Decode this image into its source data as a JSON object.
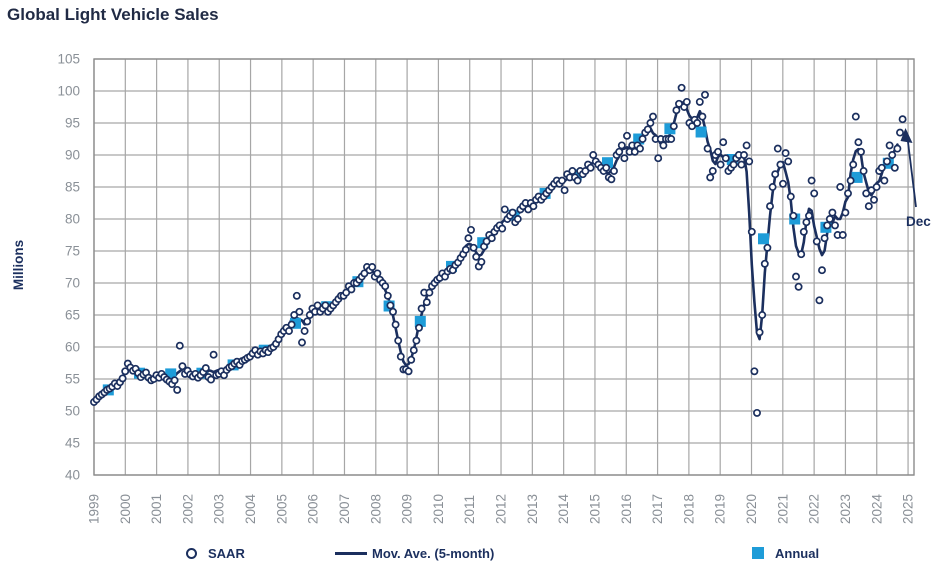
{
  "title": "Global Light Vehicle Sales",
  "y_axis": {
    "label": "Millions",
    "min": 40,
    "max": 105,
    "step": 5,
    "ticks": [
      105,
      100,
      95,
      90,
      85,
      80,
      75,
      70,
      65,
      60,
      55,
      50,
      45,
      40
    ]
  },
  "x_axis": {
    "ticks": [
      "1999",
      "2000",
      "2001",
      "2002",
      "2003",
      "2004",
      "2005",
      "2006",
      "2007",
      "2008",
      "2009",
      "2010",
      "2011",
      "2012",
      "2013",
      "2014",
      "2015",
      "2016",
      "2017",
      "2018",
      "2019",
      "2020",
      "2021",
      "2022",
      "2023",
      "2024",
      "2025"
    ]
  },
  "annotation": {
    "label": "Dec"
  },
  "legend": {
    "items": [
      {
        "label": "SAAR",
        "marker": "circle"
      },
      {
        "label": "Mov. Ave. (5-month)",
        "marker": "line"
      },
      {
        "label": "Annual",
        "marker": "square"
      }
    ]
  },
  "colors": {
    "navy": "#1B2F5E",
    "blue": "#1E9CD8",
    "grid": "#A6A6A6",
    "frame": "#8C8C8C",
    "axis_text": "#8A9097"
  },
  "chart_data": {
    "type": "combo",
    "title": "Global Light Vehicle Sales",
    "ylabel": "Millions",
    "ylim": [
      40,
      105
    ],
    "xlim": [
      "1999",
      "2025"
    ],
    "grid": true,
    "legend_position": "bottom",
    "series": [
      {
        "name": "SAAR",
        "type": "scatter",
        "freq": "monthly",
        "start": "1999-01",
        "end": "2024-12",
        "values": [
          51.4,
          51.8,
          52.3,
          52.6,
          52.9,
          53.3,
          53.5,
          53.8,
          54.3,
          53.9,
          54.5,
          55.1,
          56.2,
          57.4,
          56.8,
          56.3,
          56.6,
          55.9,
          55.3,
          55.7,
          56.0,
          55.2,
          54.8,
          55.0,
          55.6,
          55.2,
          55.8,
          55.3,
          54.9,
          54.6,
          54.2,
          54.8,
          53.3,
          60.2,
          57.0,
          55.8,
          56.3,
          55.7,
          55.4,
          55.8,
          55.2,
          55.6,
          56.1,
          56.7,
          55.3,
          54.9,
          58.8,
          55.6,
          55.8,
          56.2,
          55.6,
          56.4,
          56.8,
          57.0,
          57.4,
          57.7,
          57.2,
          57.8,
          58.0,
          58.3,
          58.5,
          59.0,
          59.5,
          58.8,
          59.3,
          59.0,
          59.5,
          59.2,
          59.8,
          60.0,
          60.5,
          61.2,
          62.0,
          62.5,
          63.0,
          62.5,
          63.5,
          65.0,
          68.0,
          65.5,
          60.7,
          62.5,
          64.0,
          65.0,
          66.0,
          65.5,
          66.5,
          65.5,
          66.0,
          66.5,
          65.5,
          66.0,
          66.5,
          67.0,
          67.5,
          68.0,
          68.0,
          68.5,
          69.5,
          69.0,
          70.0,
          70.0,
          70.5,
          71.0,
          71.5,
          72.5,
          72.0,
          72.5,
          71.0,
          71.5,
          70.5,
          70.0,
          69.5,
          68.0,
          66.5,
          65.5,
          63.5,
          61.0,
          58.5,
          56.5,
          56.5,
          56.2,
          58.0,
          59.5,
          61.0,
          63.0,
          66.0,
          68.5,
          67.0,
          68.5,
          69.5,
          70.0,
          70.5,
          70.8,
          71.5,
          71.0,
          71.8,
          72.2,
          72.0,
          72.8,
          73.2,
          73.9,
          74.5,
          75.2,
          77.0,
          78.3,
          75.5,
          74.1,
          72.6,
          73.3,
          75.7,
          76.5,
          77.5,
          77.0,
          78.0,
          78.6,
          79.0,
          78.5,
          81.5,
          80.0,
          80.5,
          81.0,
          79.5,
          80.0,
          81.5,
          82.0,
          82.5,
          81.5,
          82.5,
          82.0,
          83.0,
          83.5,
          83.0,
          83.5,
          84.0,
          84.5,
          85.0,
          85.5,
          86.0,
          85.5,
          86.0,
          84.5,
          87.0,
          86.5,
          87.5,
          86.5,
          86.0,
          87.5,
          87.0,
          87.5,
          88.5,
          88.0,
          90.0,
          89.0,
          88.5,
          88.0,
          87.5,
          88.0,
          86.5,
          86.2,
          87.5,
          90.0,
          90.5,
          91.5,
          89.5,
          93.0,
          90.5,
          91.5,
          90.5,
          91.5,
          91.0,
          92.5,
          93.5,
          94.0,
          95.0,
          96.0,
          92.5,
          89.5,
          92.5,
          91.5,
          92.5,
          92.5,
          92.5,
          94.5,
          97.0,
          98.0,
          100.5,
          97.5,
          98.3,
          95.0,
          94.5,
          95.5,
          95.0,
          98.3,
          96.0,
          99.4,
          91.0,
          86.5,
          87.5,
          90.0,
          90.5,
          88.5,
          92.0,
          89.5,
          87.5,
          88.0,
          88.5,
          89.5,
          90.0,
          88.5,
          90.0,
          91.5,
          89.0,
          78.0,
          56.2,
          49.7,
          62.3,
          65.0,
          73.0,
          75.5,
          82.0,
          85.0,
          87.0,
          91.0,
          88.5,
          85.5,
          90.3,
          89.0,
          83.5,
          80.5,
          71.0,
          69.4,
          74.5,
          78.0,
          79.5,
          80.5,
          86.0,
          84.0,
          76.5,
          67.3,
          72.0,
          77.0,
          79.0,
          80.0,
          81.0,
          79.0,
          77.5,
          85.0,
          77.5,
          81.0,
          84.0,
          86.0,
          88.5,
          96.0,
          92.0,
          90.5,
          87.5,
          84.0,
          82.0,
          84.5,
          83.0,
          85.0,
          87.5,
          88.0,
          86.0,
          89.0,
          91.5,
          90.0,
          88.0,
          91.0,
          93.5,
          95.6
        ]
      },
      {
        "name": "Mov. Ave. (5-month)",
        "type": "line",
        "derived_from": "SAAR",
        "window": 5,
        "centered": true
      },
      {
        "name": "Annual",
        "type": "scatter_square",
        "years": [
          1999,
          2000,
          2001,
          2002,
          2003,
          2004,
          2005,
          2006,
          2007,
          2008,
          2009,
          2010,
          2011,
          2012,
          2013,
          2014,
          2015,
          2016,
          2017,
          2018,
          2019,
          2020,
          2021,
          2022,
          2023,
          2024
        ],
        "values": [
          53.3,
          55.9,
          55.8,
          55.9,
          57.2,
          59.5,
          63.7,
          66.3,
          70.2,
          66.4,
          64.0,
          72.6,
          76.3,
          80.6,
          84.0,
          86.9,
          88.8,
          92.5,
          94.1,
          93.6,
          89.3,
          76.9,
          80.0,
          78.7,
          86.5,
          88.7
        ]
      }
    ],
    "last_point_annotation": {
      "label": "Dec",
      "month": "2024-12",
      "value": 95.6
    }
  }
}
